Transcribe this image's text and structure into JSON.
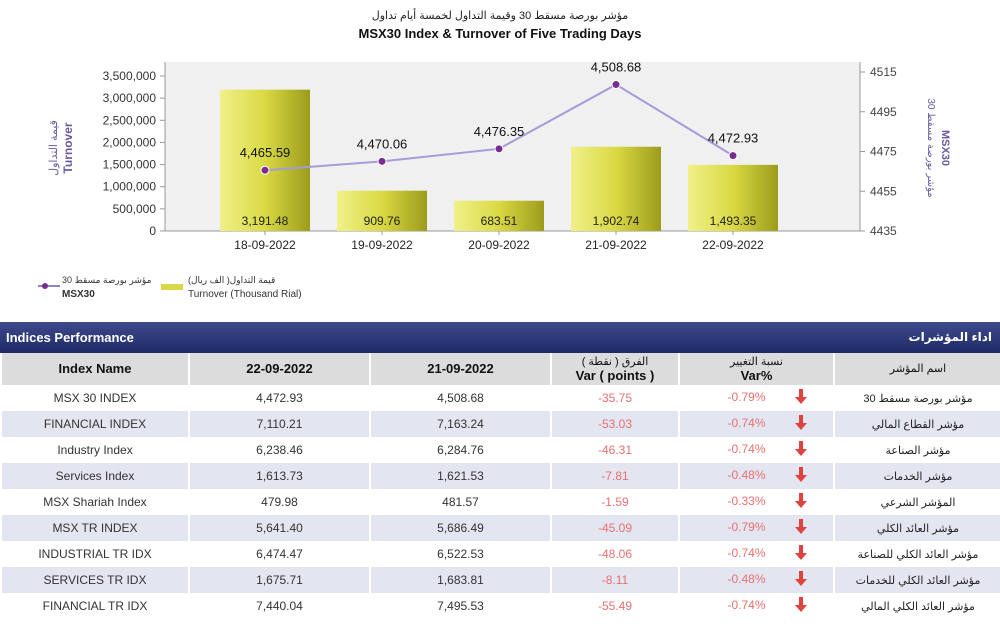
{
  "chart_data": {
    "type": "bar",
    "title_ar": "مؤشر بورصة مسقط 30 وقيمة التداول لخمسة أيام تداول",
    "title": "MSX30 Index & Turnover of Five Trading Days",
    "categories": [
      "18-09-2022",
      "19-09-2022",
      "20-09-2022",
      "21-09-2022",
      "22-09-2022"
    ],
    "series": [
      {
        "name": "Turnover (Thousand Rial)",
        "name_ar": "قيمة التداول( الف ريال)",
        "type": "bar",
        "axis": "left",
        "values": [
          3191.48,
          909.76,
          683.51,
          1902.74,
          1493.35
        ],
        "labels": [
          "3,191.48",
          "909.76",
          "683.51",
          "1,902.74",
          "1,493.35"
        ]
      },
      {
        "name": "MSX30",
        "name_ar": "مؤشر بورصة مسقط 30",
        "type": "line",
        "axis": "right",
        "values": [
          4465.59,
          4470.06,
          4476.35,
          4508.68,
          4472.93
        ],
        "labels": [
          "4,465.59",
          "4,470.06",
          "4,476.35",
          "4,508.68",
          "4,472.93"
        ]
      }
    ],
    "ylabel_left": "Turnover",
    "ylabel_left_ar": "قيمة التداول",
    "ylabel_right": "MSX30",
    "ylabel_right_ar": "مؤشر بورصة مسقط 30",
    "ylim_left": [
      0,
      3500000
    ],
    "yticks_left": [
      "0",
      "500,000",
      "1,000,000",
      "1,500,000",
      "2,000,000",
      "2,500,000",
      "3,000,000",
      "3,500,000"
    ],
    "ylim_right": [
      4435,
      4515
    ],
    "yticks_right": [
      "4435",
      "4455",
      "4475",
      "4495",
      "4515"
    ],
    "legend_placement": "bottom-left",
    "colors": {
      "bar": "#d8d84a",
      "line": "#a59bd8",
      "marker": "#7a2c8e"
    }
  },
  "table": {
    "title": "Indices Performance",
    "title_ar": "اداء المؤشرات",
    "headers": {
      "name": "Index Name",
      "d2": "22-09-2022",
      "d1": "21-09-2022",
      "var_ar": "الفرق ( نقطة )",
      "var_en": "Var ( points )",
      "pct_ar": "نسبة التغيير",
      "pct_en": "Var%",
      "name_ar": "اسم المؤشر"
    },
    "rows": [
      {
        "name": "MSX 30 INDEX",
        "d2": "4,472.93",
        "d1": "4,508.68",
        "var": "-35.75",
        "pct": "-0.79%",
        "name_ar": "مؤشر بورصة مسقط 30"
      },
      {
        "name": "FINANCIAL INDEX",
        "d2": "7,110.21",
        "d1": "7,163.24",
        "var": "-53.03",
        "pct": "-0.74%",
        "name_ar": "مؤشر القطاع المالي"
      },
      {
        "name": "Industry Index",
        "d2": "6,238.46",
        "d1": "6,284.76",
        "var": "-46.31",
        "pct": "-0.74%",
        "name_ar": "مؤشر الصناعة"
      },
      {
        "name": "Services Index",
        "d2": "1,613.73",
        "d1": "1,621.53",
        "var": "-7.81",
        "pct": "-0.48%",
        "name_ar": "مؤشر الخدمات"
      },
      {
        "name": "MSX Shariah Index",
        "d2": "479.98",
        "d1": "481.57",
        "var": "-1.59",
        "pct": "-0.33%",
        "name_ar": "المؤشر الشرعي"
      },
      {
        "name": "MSX TR INDEX",
        "d2": "5,641.40",
        "d1": "5,686.49",
        "var": "-45.09",
        "pct": "-0.79%",
        "name_ar": "مؤشر العائد الكلي"
      },
      {
        "name": "INDUSTRIAL TR IDX",
        "d2": "6,474.47",
        "d1": "6,522.53",
        "var": "-48.06",
        "pct": "-0.74%",
        "name_ar": "مؤشر العائد الكلي للصناعة"
      },
      {
        "name": "SERVICES TR IDX",
        "d2": "1,675.71",
        "d1": "1,683.81",
        "var": "-8.11",
        "pct": "-0.48%",
        "name_ar": "مؤشر العائد الكلي للخدمات"
      },
      {
        "name": "FINANCIAL TR IDX",
        "d2": "7,440.04",
        "d1": "7,495.53",
        "var": "-55.49",
        "pct": "-0.74%",
        "name_ar": "مؤشر العائد الكلي المالي"
      }
    ],
    "icons": {
      "change": "down-arrow-icon"
    },
    "colors": {
      "negative": "#e8706f",
      "arrow": "#e0433f",
      "header_bg": "#dcdcdc",
      "banner": "#2a3575"
    }
  }
}
